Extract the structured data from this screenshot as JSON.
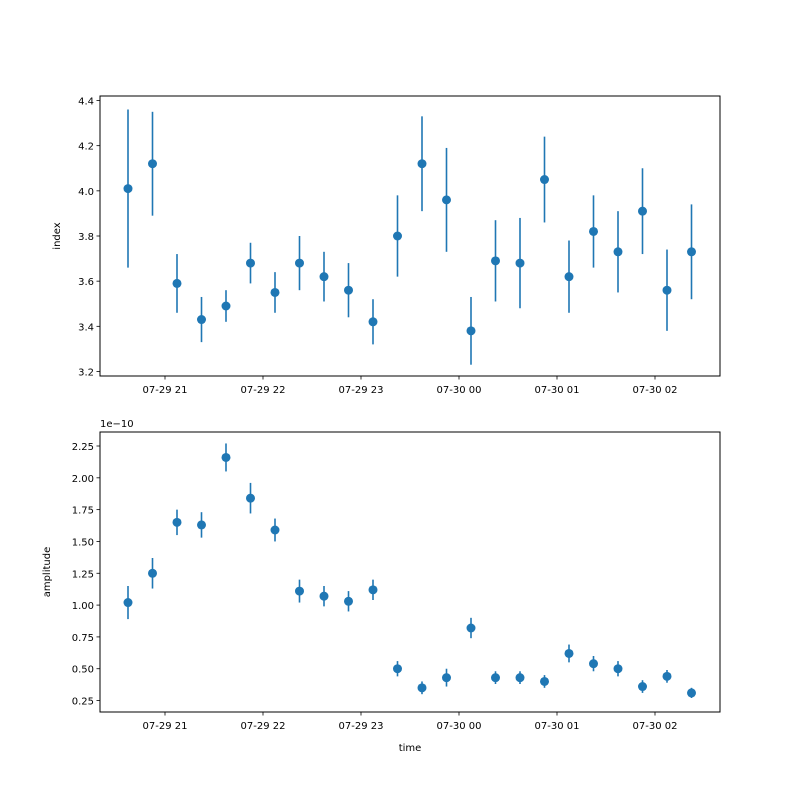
{
  "chart_data": [
    {
      "type": "scatter",
      "subtype": "errorbar",
      "title": "",
      "xlabel": "",
      "ylabel": "index",
      "ylim": [
        3.18,
        4.42
      ],
      "yticks": [
        "3.2",
        "3.4",
        "3.6",
        "3.8",
        "4.0",
        "4.2",
        "4.4"
      ],
      "xticks": [
        "07-29 21",
        "07-29 22",
        "07-29 23",
        "07-30 00",
        "07-30 01",
        "07-30 02"
      ],
      "x": [
        "07-29 20:37",
        "07-29 20:52",
        "07-29 21:07",
        "07-29 21:22",
        "07-29 21:37",
        "07-29 21:52",
        "07-29 22:07",
        "07-29 22:22",
        "07-29 22:37",
        "07-29 22:52",
        "07-29 23:07",
        "07-29 23:22",
        "07-29 23:37",
        "07-29 23:52",
        "07-30 00:07",
        "07-30 00:22",
        "07-30 00:37",
        "07-30 00:52",
        "07-30 01:07",
        "07-30 01:22",
        "07-30 01:37",
        "07-30 01:52",
        "07-30 02:07",
        "07-30 02:22"
      ],
      "values": [
        4.01,
        4.12,
        3.59,
        3.43,
        3.49,
        3.68,
        3.55,
        3.68,
        3.62,
        3.56,
        3.42,
        3.8,
        4.12,
        3.96,
        3.38,
        3.69,
        3.68,
        4.05,
        3.62,
        3.82,
        3.73,
        3.91,
        3.56,
        3.73
      ],
      "errors": [
        0.35,
        0.23,
        0.13,
        0.1,
        0.07,
        0.09,
        0.09,
        0.12,
        0.11,
        0.12,
        0.1,
        0.18,
        0.21,
        0.23,
        0.15,
        0.18,
        0.2,
        0.19,
        0.16,
        0.16,
        0.18,
        0.19,
        0.18,
        0.21
      ],
      "color": "#1f77b4"
    },
    {
      "type": "scatter",
      "subtype": "errorbar",
      "title": "",
      "xlabel": "time",
      "ylabel": "amplitude",
      "y_offset_label": "1e−10",
      "ylim": [
        0.16,
        2.36
      ],
      "yticks": [
        "0.25",
        "0.50",
        "0.75",
        "1.00",
        "1.25",
        "1.50",
        "1.75",
        "2.00",
        "2.25"
      ],
      "xticks": [
        "07-29 21",
        "07-29 22",
        "07-29 23",
        "07-30 00",
        "07-30 01",
        "07-30 02"
      ],
      "values": [
        1.02,
        1.25,
        1.65,
        1.63,
        2.16,
        1.84,
        1.59,
        1.11,
        1.07,
        1.03,
        1.12,
        0.5,
        0.35,
        0.43,
        0.82,
        0.43,
        0.43,
        0.4,
        0.62,
        0.54,
        0.5,
        0.36,
        0.44,
        0.31
      ],
      "errors": [
        0.13,
        0.12,
        0.1,
        0.1,
        0.11,
        0.12,
        0.09,
        0.09,
        0.08,
        0.08,
        0.08,
        0.06,
        0.05,
        0.07,
        0.08,
        0.05,
        0.05,
        0.05,
        0.07,
        0.06,
        0.06,
        0.05,
        0.05,
        0.04
      ],
      "color": "#1f77b4"
    }
  ]
}
